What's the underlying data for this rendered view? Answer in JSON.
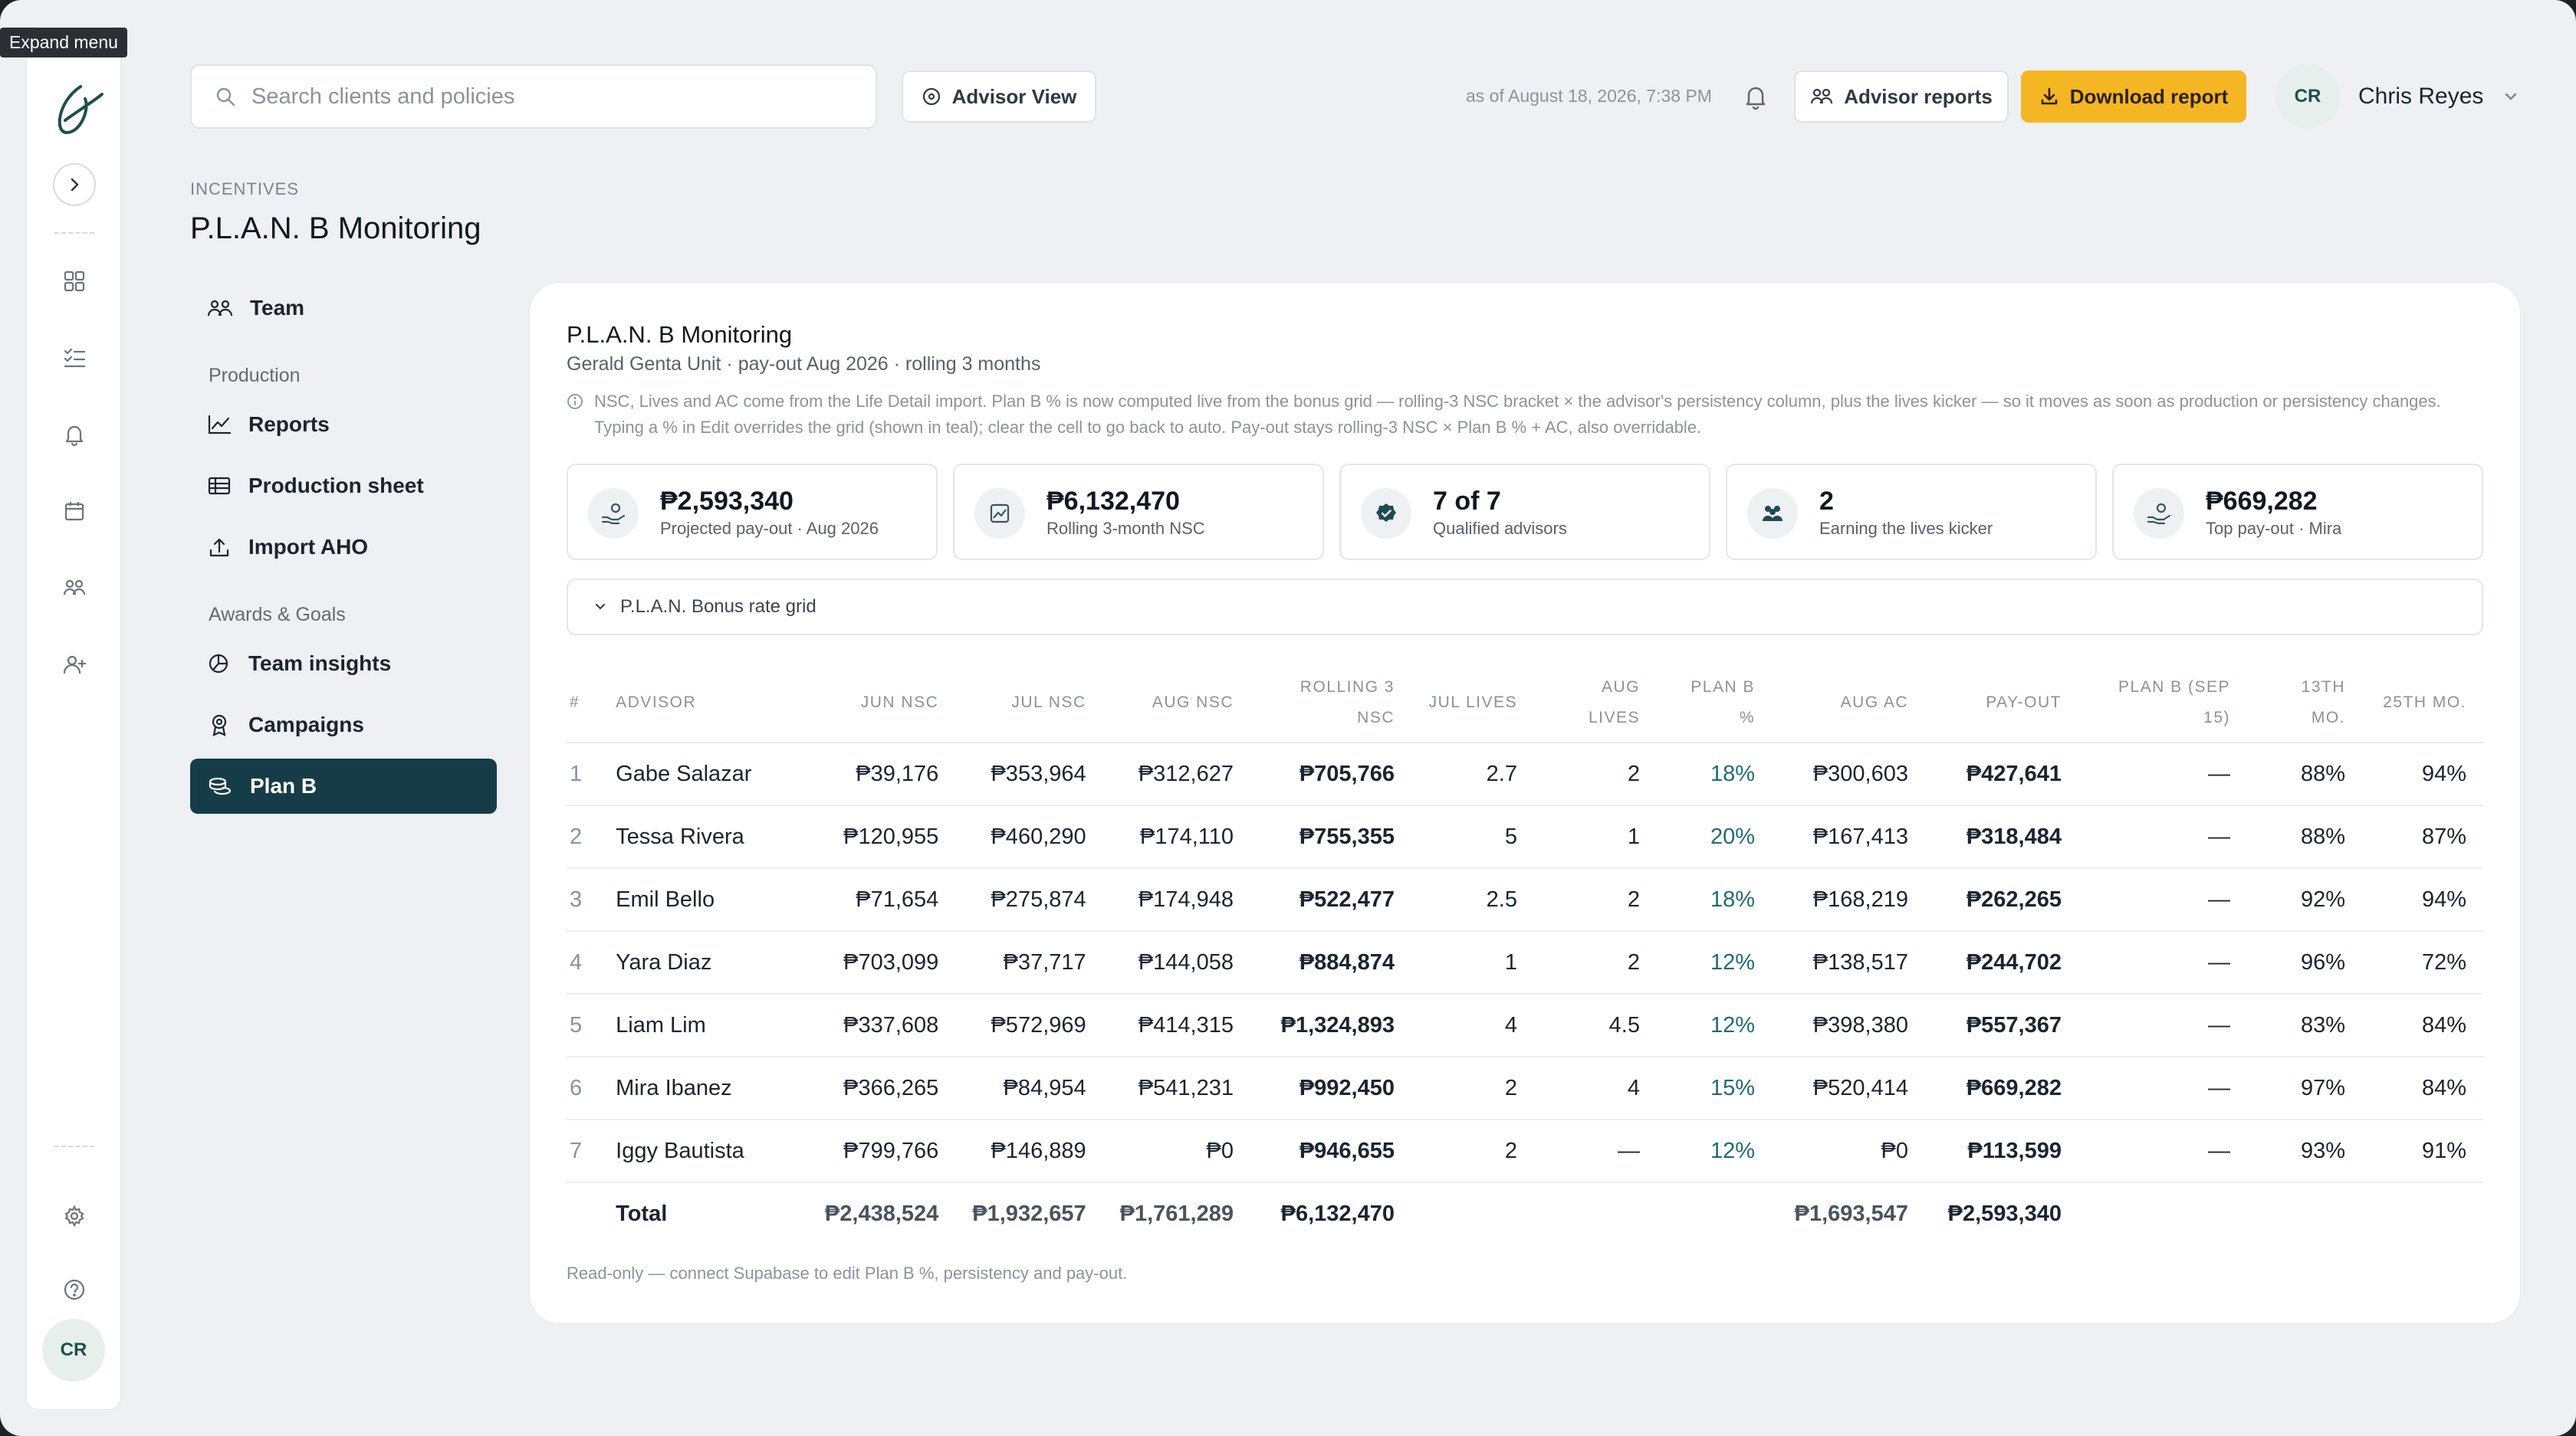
{
  "tooltip": "Expand menu",
  "rail": {
    "avatar": "CR"
  },
  "topbar": {
    "search_placeholder": "Search clients and policies",
    "advisor_view": "Advisor View",
    "as_of": "as of August 18, 2026, 7:38 PM",
    "advisor_reports": "Advisor reports",
    "download_report": "Download report",
    "user_initials": "CR",
    "user_name": "Chris Reyes"
  },
  "page": {
    "crumb": "INCENTIVES",
    "title": "P.L.A.N. B Monitoring"
  },
  "subnav": {
    "team": "Team",
    "production_section": "Production",
    "reports": "Reports",
    "production_sheet": "Production sheet",
    "import_aho": "Import AHO",
    "awards_section": "Awards & Goals",
    "team_insights": "Team insights",
    "campaigns": "Campaigns",
    "plan_b": "Plan B"
  },
  "card": {
    "title": "P.L.A.N. B Monitoring",
    "subtitle": "Gerald Genta Unit · pay-out Aug 2026 · rolling 3 months",
    "note": "NSC, Lives and AC come from the Life Detail import. Plan B % is now computed live from the bonus grid — rolling-3 NSC bracket × the advisor's persistency column, plus the lives kicker — so it moves as soon as production or persistency changes. Typing a % in Edit overrides the grid (shown in teal); clear the cell to go back to auto. Pay-out stays rolling-3 NSC × Plan B % + AC, also overridable.",
    "kpis": [
      {
        "value": "₱2,593,340",
        "label": "Projected pay-out · Aug 2026"
      },
      {
        "value": "₱6,132,470",
        "label": "Rolling 3-month NSC"
      },
      {
        "value": "7 of 7",
        "label": "Qualified advisors"
      },
      {
        "value": "2",
        "label": "Earning the lives kicker"
      },
      {
        "value": "₱669,282",
        "label": "Top pay-out · Mira"
      }
    ],
    "grid_toggle": "P.L.A.N. Bonus rate grid",
    "footnote": "Read-only — connect Supabase to edit Plan B %, persistency and pay-out."
  },
  "table": {
    "headers": [
      "#",
      "Advisor",
      "Jun NSC",
      "Jul NSC",
      "Aug NSC",
      "Rolling 3 NSC",
      "Jul Lives",
      "Aug Lives",
      "Plan B %",
      "Aug AC",
      "Pay-out",
      "Plan B (Sep 15)",
      "13th Mo.",
      "25th Mo."
    ],
    "rows": [
      [
        "1",
        "Gabe Salazar",
        "₱39,176",
        "₱353,964",
        "₱312,627",
        "₱705,766",
        "2.7",
        "2",
        "18%",
        "₱300,603",
        "₱427,641",
        "—",
        "88%",
        "94%"
      ],
      [
        "2",
        "Tessa Rivera",
        "₱120,955",
        "₱460,290",
        "₱174,110",
        "₱755,355",
        "5",
        "1",
        "20%",
        "₱167,413",
        "₱318,484",
        "—",
        "88%",
        "87%"
      ],
      [
        "3",
        "Emil Bello",
        "₱71,654",
        "₱275,874",
        "₱174,948",
        "₱522,477",
        "2.5",
        "2",
        "18%",
        "₱168,219",
        "₱262,265",
        "—",
        "92%",
        "94%"
      ],
      [
        "4",
        "Yara Diaz",
        "₱703,099",
        "₱37,717",
        "₱144,058",
        "₱884,874",
        "1",
        "2",
        "12%",
        "₱138,517",
        "₱244,702",
        "—",
        "96%",
        "72%"
      ],
      [
        "5",
        "Liam Lim",
        "₱337,608",
        "₱572,969",
        "₱414,315",
        "₱1,324,893",
        "4",
        "4.5",
        "12%",
        "₱398,380",
        "₱557,367",
        "—",
        "83%",
        "84%"
      ],
      [
        "6",
        "Mira Ibanez",
        "₱366,265",
        "₱84,954",
        "₱541,231",
        "₱992,450",
        "2",
        "4",
        "15%",
        "₱520,414",
        "₱669,282",
        "—",
        "97%",
        "84%"
      ],
      [
        "7",
        "Iggy Bautista",
        "₱799,766",
        "₱146,889",
        "₱0",
        "₱946,655",
        "2",
        "—",
        "12%",
        "₱0",
        "₱113,599",
        "—",
        "93%",
        "91%"
      ]
    ],
    "total": [
      "",
      "Total",
      "₱2,438,524",
      "₱1,932,657",
      "₱1,761,289",
      "₱6,132,470",
      "",
      "",
      "",
      "₱1,693,547",
      "₱2,593,340",
      "",
      "",
      ""
    ]
  },
  "colors": {
    "accent_yellow": "#f5b623",
    "nav_active": "#163d47",
    "teal_text": "#1f6b75"
  }
}
